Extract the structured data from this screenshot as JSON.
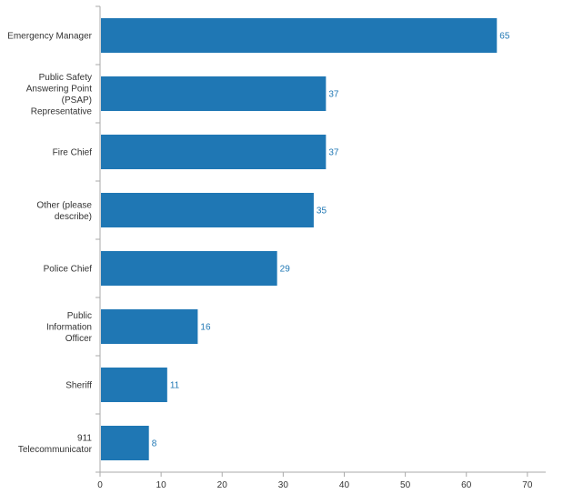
{
  "chart_data": {
    "type": "bar",
    "orientation": "horizontal",
    "title": "",
    "xlabel": "",
    "ylabel": "",
    "categories": [
      "Emergency Manager",
      "Public Safety Answering Point (PSAP) Representative",
      "Fire Chief",
      "Other (please describe)",
      "Police Chief",
      "Public Information Officer",
      "Sheriff",
      "911 Telecommunicator"
    ],
    "category_lines": [
      [
        "Emergency Manager"
      ],
      [
        "Public Safety",
        "Answering Point",
        "(PSAP)",
        "Representative"
      ],
      [
        "Fire Chief"
      ],
      [
        "Other (please",
        "describe)"
      ],
      [
        "Police Chief"
      ],
      [
        "Public",
        "Information",
        "Officer"
      ],
      [
        "Sheriff"
      ],
      [
        "911",
        "Telecommunicator"
      ]
    ],
    "values": [
      65,
      37,
      37,
      35,
      29,
      16,
      11,
      8
    ],
    "xlim": [
      0,
      73
    ],
    "ticks": [
      0,
      10,
      20,
      30,
      40,
      50,
      60,
      70
    ],
    "grid": false,
    "legend": "none",
    "data_labels": true,
    "colors": {
      "bar": "#1f77b4",
      "value_label": "#1f77b4",
      "axis": "#aaaaaa",
      "text": "#333333"
    }
  }
}
